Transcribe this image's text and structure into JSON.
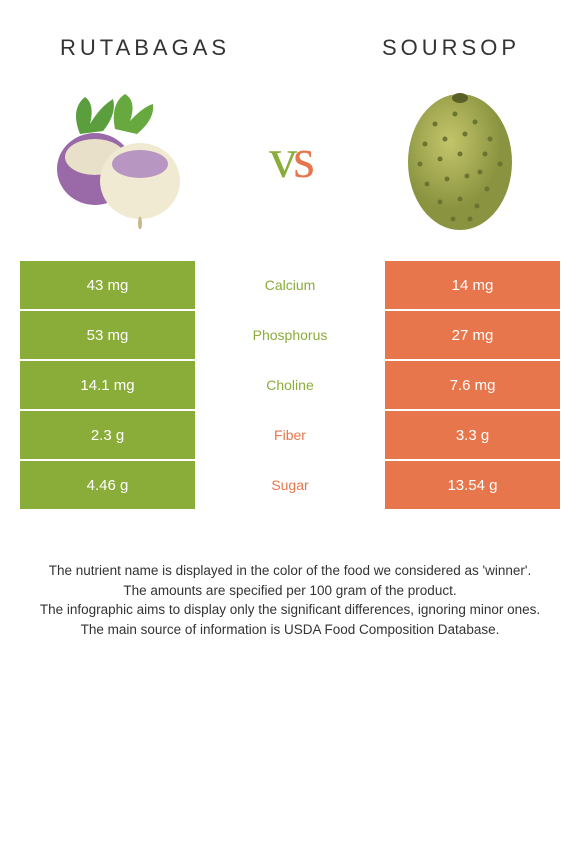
{
  "foods": {
    "left": {
      "name": "Rutabagas",
      "color": "#8aad3a"
    },
    "right": {
      "name": "Soursop",
      "color": "#e8764c"
    }
  },
  "vs": {
    "v": "v",
    "s": "s"
  },
  "rows": [
    {
      "left": "43 mg",
      "label": "Calcium",
      "right": "14 mg",
      "winner": "left"
    },
    {
      "left": "53 mg",
      "label": "Phosphorus",
      "right": "27 mg",
      "winner": "left"
    },
    {
      "left": "14.1 mg",
      "label": "Choline",
      "right": "7.6 mg",
      "winner": "left"
    },
    {
      "left": "2.3 g",
      "label": "Fiber",
      "right": "3.3 g",
      "winner": "right"
    },
    {
      "left": "4.46 g",
      "label": "Sugar",
      "right": "13.54 g",
      "winner": "right"
    }
  ],
  "footer": {
    "l1": "The nutrient name is displayed in the color of the food we considered as 'winner'.",
    "l2": "The amounts are specified per 100 gram of the product.",
    "l3": "The infographic aims to display only the significant differences, ignoring minor ones.",
    "l4": "The main source of information is USDA Food Composition Database."
  },
  "colors": {
    "left_bg": "#8aad3a",
    "right_bg": "#e8764c"
  }
}
